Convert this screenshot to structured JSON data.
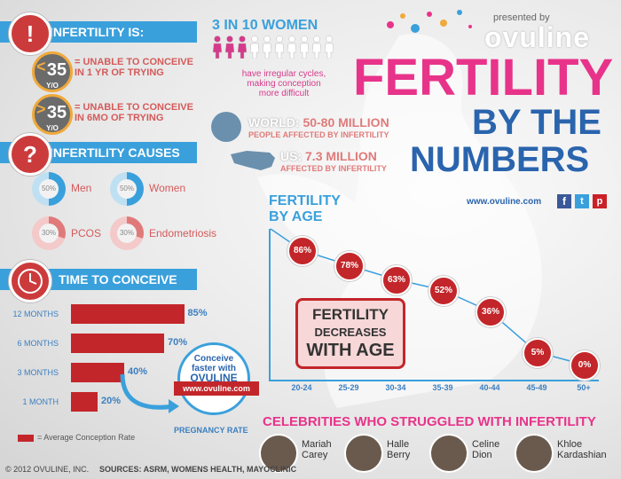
{
  "colors": {
    "blue": "#3aa0dc",
    "red": "#c3262a",
    "pink": "#e8338a",
    "darkblue": "#2a64ad"
  },
  "brand": {
    "presented_by": "presented by",
    "logo": "ovuline",
    "url": "www.ovuline.com"
  },
  "title": {
    "line1": "FERTILITY",
    "line2": "BY THE",
    "line3": "NUMBERS"
  },
  "infertility_is": {
    "heading": "INFERTILITY IS:",
    "icon": "exclamation-icon",
    "items": [
      {
        "sign": "<",
        "age": "35",
        "unit": "Y/O",
        "text1": "= UNABLE TO CONCEIVE",
        "text2": "IN 1 YR OF TRYING"
      },
      {
        "sign": ">",
        "age": "35",
        "unit": "Y/O",
        "text1": "= UNABLE TO CONCEIVE",
        "text2": "IN 6MO OF TRYING"
      }
    ]
  },
  "women_stat": {
    "headline": "3 IN 10 WOMEN",
    "caption1": "have irregular cycles,",
    "caption2": "making conception",
    "caption3": "more difficult",
    "highlighted": 3,
    "total": 10
  },
  "world": {
    "label": "WORLD:",
    "value": "50-80 MILLION",
    "sub": "PEOPLE AFFECTED BY INFERTILITY"
  },
  "us": {
    "label": "US:",
    "value": "7.3 MILLION",
    "sub": "AFFECTED BY INFERTILITY"
  },
  "causes": {
    "heading": "INFERTILITY CAUSES",
    "icon": "question-icon",
    "items": [
      {
        "label": "Men",
        "pct": 50,
        "pct_text": "50%"
      },
      {
        "label": "Women",
        "pct": 50,
        "pct_text": "50%"
      },
      {
        "label": "PCOS",
        "pct": 30,
        "pct_text": "30%"
      },
      {
        "label": "Endometriosis",
        "pct": 30,
        "pct_text": "30%"
      }
    ]
  },
  "time_to_conceive": {
    "heading": "TIME TO CONCEIVE",
    "icon": "clock-icon",
    "legend": "= Average Conception Rate",
    "xlabel": "PREGNANCY RATE",
    "badge": {
      "line1": "Conceive",
      "line2": "faster with",
      "line3": "OVULINE",
      "url": "www.ovuline.com"
    }
  },
  "fertility_by_age": {
    "heading1": "FERTILITY",
    "heading2": "BY AGE",
    "callout1": "FERTILITY",
    "callout2": "DECREASES",
    "callout3": "WITH AGE"
  },
  "celebrities": {
    "heading": "CELEBRITIES WHO STRUGGLED WITH INFERTILITY",
    "items": [
      {
        "first": "Mariah",
        "last": "Carey"
      },
      {
        "first": "Halle",
        "last": "Berry"
      },
      {
        "first": "Celine",
        "last": "Dion"
      },
      {
        "first": "Khloe",
        "last": "Kardashian"
      }
    ]
  },
  "footer": {
    "copyright": "© 2012 OVULINE, INC.",
    "sources": "SOURCES: ASRM, WOMENS HEALTH, MAYOCLINIC"
  },
  "chart_data": [
    {
      "type": "bar",
      "title": "TIME TO CONCEIVE",
      "xlabel": "PREGNANCY RATE",
      "ylabel": "",
      "categories": [
        "12 MONTHS",
        "6 MONTHS",
        "3 MONTHS",
        "1 MONTH"
      ],
      "values": [
        85,
        70,
        40,
        20
      ],
      "labels": [
        "85%",
        "70%",
        "40%",
        "20%"
      ],
      "xlim": [
        0,
        100
      ]
    },
    {
      "type": "line",
      "title": "FERTILITY BY AGE",
      "xlabel": "",
      "ylabel": "",
      "categories": [
        "20-24",
        "25-29",
        "30-34",
        "35-39",
        "40-44",
        "45-49",
        "50+"
      ],
      "values": [
        86,
        78,
        63,
        52,
        36,
        5,
        0
      ],
      "labels": [
        "86%",
        "78%",
        "63%",
        "52%",
        "36%",
        "5%",
        "0%"
      ],
      "ylim": [
        0,
        100
      ]
    }
  ]
}
